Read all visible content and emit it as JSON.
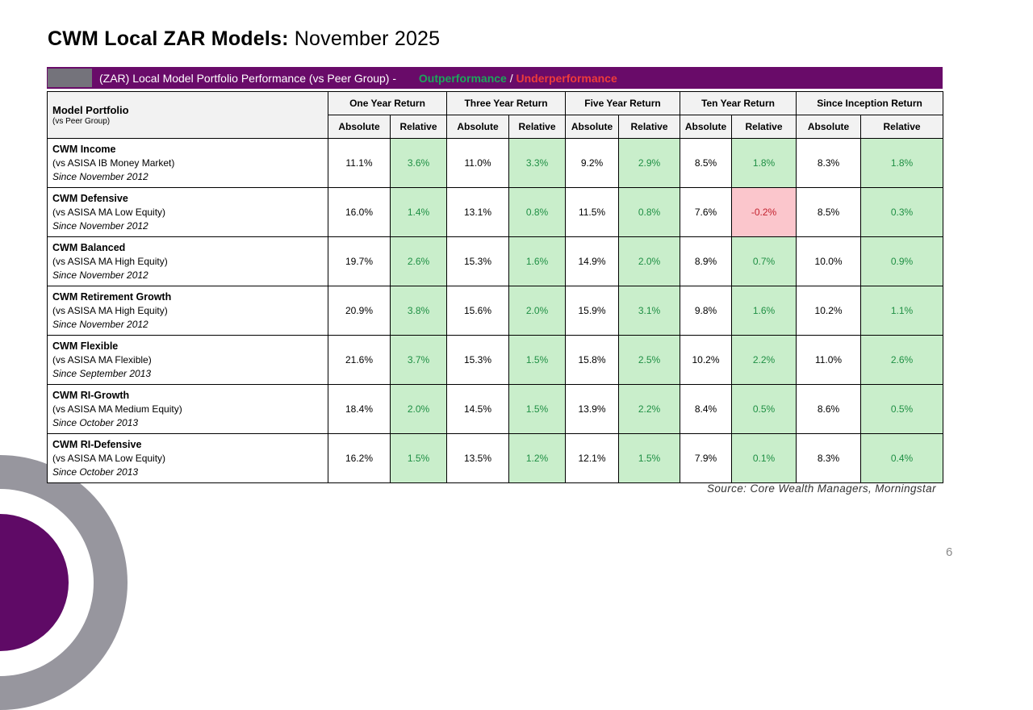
{
  "slide": {
    "title_bold": "CWM Local ZAR Models:",
    "title_regular": " November 2025",
    "source": "Source: Core Wealth Managers, Morningstar",
    "page_number": "6"
  },
  "banner": {
    "label": "(ZAR) Local Model Portfolio Performance (vs Peer Group) - ",
    "outperformance_label": "Outperformance",
    "separator": " / ",
    "underperformance_label": "Underperformance"
  },
  "table": {
    "portfolio_header": "Model Portfolio",
    "portfolio_subheader": "(vs Peer Group)",
    "group_headers": [
      "One Year Return",
      "Three Year Return",
      "Five Year Return",
      "Ten Year Return",
      "Since Inception Return"
    ],
    "sub_headers": [
      "Absolute",
      "Relative"
    ],
    "rows": [
      {
        "name": "CWM Income",
        "peer": "(vs ASISA IB Money Market)",
        "since": "Since November 2012",
        "periods": [
          {
            "abs": "11.1%",
            "rel": "3.6%"
          },
          {
            "abs": "11.0%",
            "rel": "3.3%"
          },
          {
            "abs": "9.2%",
            "rel": "2.9%"
          },
          {
            "abs": "8.5%",
            "rel": "1.8%"
          },
          {
            "abs": "8.3%",
            "rel": "1.8%"
          }
        ]
      },
      {
        "name": "CWM Defensive",
        "peer": "(vs ASISA MA Low Equity)",
        "since": "Since November 2012",
        "periods": [
          {
            "abs": "16.0%",
            "rel": "1.4%"
          },
          {
            "abs": "13.1%",
            "rel": "0.8%"
          },
          {
            "abs": "11.5%",
            "rel": "0.8%"
          },
          {
            "abs": "7.6%",
            "rel": "-0.2%"
          },
          {
            "abs": "8.5%",
            "rel": "0.3%"
          }
        ]
      },
      {
        "name": "CWM Balanced",
        "peer": "(vs ASISA MA High Equity)",
        "since": "Since November 2012",
        "periods": [
          {
            "abs": "19.7%",
            "rel": "2.6%"
          },
          {
            "abs": "15.3%",
            "rel": "1.6%"
          },
          {
            "abs": "14.9%",
            "rel": "2.0%"
          },
          {
            "abs": "8.9%",
            "rel": "0.7%"
          },
          {
            "abs": "10.0%",
            "rel": "0.9%"
          }
        ]
      },
      {
        "name": "CWM Retirement Growth",
        "peer": "(vs ASISA MA High Equity)",
        "since": "Since November 2012",
        "periods": [
          {
            "abs": "20.9%",
            "rel": "3.8%"
          },
          {
            "abs": "15.6%",
            "rel": "2.0%"
          },
          {
            "abs": "15.9%",
            "rel": "3.1%"
          },
          {
            "abs": "9.8%",
            "rel": "1.6%"
          },
          {
            "abs": "10.2%",
            "rel": "1.1%"
          }
        ]
      },
      {
        "name": "CWM Flexible",
        "peer": "(vs ASISA MA Flexible)",
        "since": "Since September 2013",
        "periods": [
          {
            "abs": "21.6%",
            "rel": "3.7%"
          },
          {
            "abs": "15.3%",
            "rel": "1.5%"
          },
          {
            "abs": "15.8%",
            "rel": "2.5%"
          },
          {
            "abs": "10.2%",
            "rel": "2.2%"
          },
          {
            "abs": "11.0%",
            "rel": "2.6%"
          }
        ]
      },
      {
        "name": "CWM RI-Growth",
        "peer": "(vs ASISA MA Medium Equity)",
        "since": "Since October 2013",
        "periods": [
          {
            "abs": "18.4%",
            "rel": "2.0%"
          },
          {
            "abs": "14.5%",
            "rel": "1.5%"
          },
          {
            "abs": "13.9%",
            "rel": "2.2%"
          },
          {
            "abs": "8.4%",
            "rel": "0.5%"
          },
          {
            "abs": "8.6%",
            "rel": "0.5%"
          }
        ]
      },
      {
        "name": "CWM RI-Defensive",
        "peer": "(vs ASISA MA Low Equity)",
        "since": "Since October 2013",
        "periods": [
          {
            "abs": "16.2%",
            "rel": "1.5%"
          },
          {
            "abs": "13.5%",
            "rel": "1.2%"
          },
          {
            "abs": "12.1%",
            "rel": "1.5%"
          },
          {
            "abs": "7.9%",
            "rel": "0.1%"
          },
          {
            "abs": "8.3%",
            "rel": "0.4%"
          }
        ]
      }
    ]
  },
  "colors": {
    "brand_purple": "#690b69",
    "brand_gray": "#97969e",
    "banner_green": "#1ca65b",
    "banner_red": "#ee3b3b",
    "positive_bg": "#c9eecb",
    "positive_text": "#1f8f44",
    "negative_bg": "#fbc6cc",
    "negative_text": "#c3222e"
  }
}
